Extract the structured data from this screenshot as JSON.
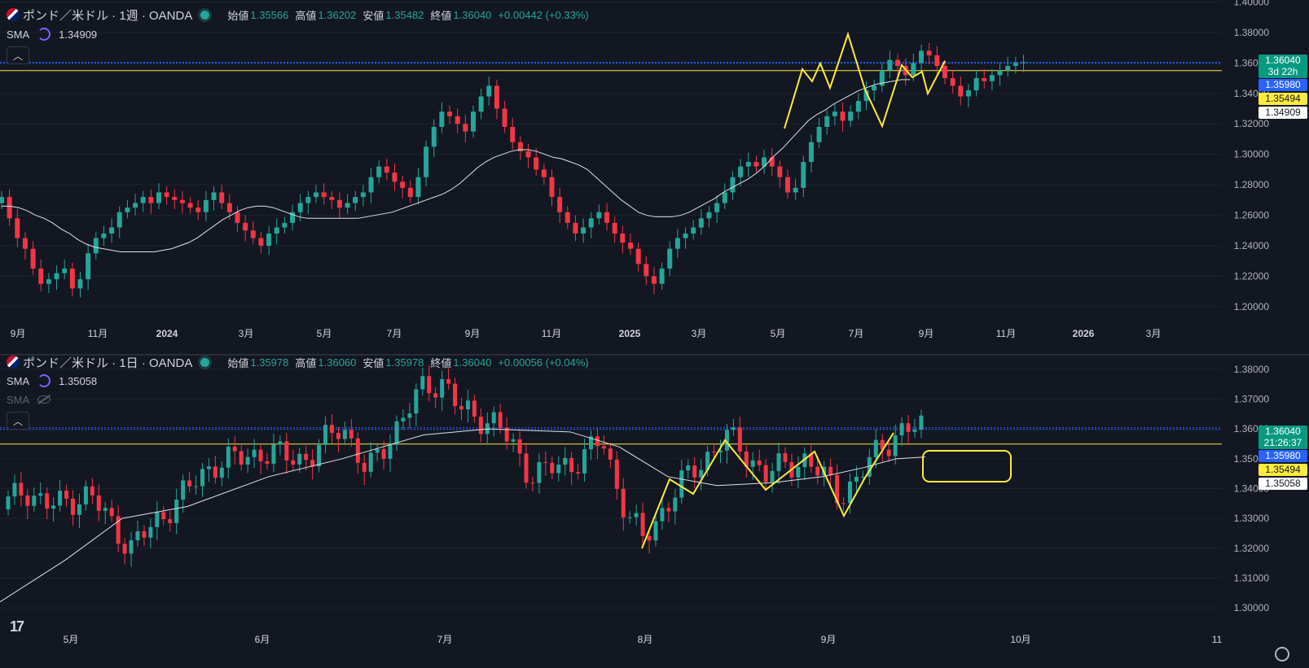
{
  "chart_data": [
    {
      "type": "candlestick",
      "symbol_title": "ポンド／米ドル · 1週 · OANDA",
      "ohlc_header": {
        "open_label": "始値",
        "open": "1.35566",
        "high_label": "高値",
        "high": "1.36202",
        "low_label": "安値",
        "low": "1.35482",
        "close_label": "終値",
        "close": "1.36040",
        "change": "+0.00442 (+0.33%)"
      },
      "indicator": {
        "name": "SMA",
        "value": "1.34909"
      },
      "y_ticks": [
        "1.40000",
        "1.38000",
        "1.36000",
        "1.34000",
        "1.32000",
        "1.30000",
        "1.28000",
        "1.26000",
        "1.24000",
        "1.22000",
        "1.20000"
      ],
      "ylim": [
        1.1898,
        1.4013
      ],
      "x_ticks": [
        {
          "label": "9月",
          "bold": false
        },
        {
          "label": "11月",
          "bold": false
        },
        {
          "label": "2024",
          "bold": true
        },
        {
          "label": "3月",
          "bold": false
        },
        {
          "label": "5月",
          "bold": false
        },
        {
          "label": "7月",
          "bold": false
        },
        {
          "label": "9月",
          "bold": false
        },
        {
          "label": "11月",
          "bold": false
        },
        {
          "label": "2025",
          "bold": true
        },
        {
          "label": "3月",
          "bold": false
        },
        {
          "label": "5月",
          "bold": false
        },
        {
          "label": "7月",
          "bold": false
        },
        {
          "label": "9月",
          "bold": false
        },
        {
          "label": "11月",
          "bold": false
        },
        {
          "label": "2026",
          "bold": true
        },
        {
          "label": "3月",
          "bold": false
        }
      ],
      "price_badges": [
        {
          "price": "1.36040",
          "sub": "3d 22h",
          "color": "#089981"
        },
        {
          "price": "1.35980",
          "color": "#2962ff"
        },
        {
          "price": "1.35494",
          "color": "#ffeb3b"
        },
        {
          "price": "1.34909",
          "color": "#ffffff"
        }
      ],
      "horizontal_lines": [
        {
          "value": 1.3604,
          "style": "dotted",
          "color": "#2962ff"
        },
        {
          "value": 1.3598,
          "style": "dotted",
          "color": "#2962ff"
        },
        {
          "value": 1.35494,
          "style": "solid",
          "color": "#ffeb3b"
        }
      ],
      "close_series": [
        1.272,
        1.258,
        1.245,
        1.238,
        1.225,
        1.215,
        1.218,
        1.222,
        1.225,
        1.212,
        1.218,
        1.235,
        1.245,
        1.248,
        1.252,
        1.262,
        1.265,
        1.268,
        1.272,
        1.268,
        1.275,
        1.272,
        1.27,
        1.268,
        1.265,
        1.262,
        1.27,
        1.275,
        1.268,
        1.262,
        1.255,
        1.25,
        1.245,
        1.24,
        1.248,
        1.252,
        1.255,
        1.262,
        1.268,
        1.272,
        1.275,
        1.272,
        1.27,
        1.265,
        1.268,
        1.272,
        1.275,
        1.285,
        1.292,
        1.288,
        1.282,
        1.278,
        1.272,
        1.285,
        1.305,
        1.318,
        1.328,
        1.325,
        1.32,
        1.315,
        1.328,
        1.338,
        1.345,
        1.33,
        1.318,
        1.308,
        1.302,
        1.298,
        1.29,
        1.285,
        1.272,
        1.262,
        1.255,
        1.248,
        1.252,
        1.258,
        1.262,
        1.255,
        1.248,
        1.242,
        1.238,
        1.228,
        1.22,
        1.215,
        1.225,
        1.238,
        1.245,
        1.248,
        1.252,
        1.258,
        1.262,
        1.268,
        1.275,
        1.285,
        1.292,
        1.295,
        1.292,
        1.298,
        1.292,
        1.285,
        1.275,
        1.278,
        1.295,
        1.308,
        1.318,
        1.325,
        1.328,
        1.322,
        1.328,
        1.335,
        1.342,
        1.345,
        1.355,
        1.362,
        1.358,
        1.352,
        1.36,
        1.368,
        1.365,
        1.358,
        1.35,
        1.345,
        1.338,
        1.342,
        1.35,
        1.348,
        1.352,
        1.355,
        1.358,
        1.36,
        1.3604
      ],
      "sma_series": [
        1.266,
        1.266,
        1.265,
        1.263,
        1.26,
        1.258,
        1.255,
        1.251,
        1.248,
        1.244,
        1.241,
        1.239,
        1.238,
        1.237,
        1.236,
        1.236,
        1.236,
        1.236,
        1.236,
        1.237,
        1.238,
        1.24,
        1.242,
        1.245,
        1.249,
        1.253,
        1.257,
        1.26,
        1.263,
        1.265,
        1.266,
        1.266,
        1.265,
        1.263,
        1.261,
        1.259,
        1.258,
        1.258,
        1.258,
        1.258,
        1.258,
        1.258,
        1.258,
        1.259,
        1.26,
        1.261,
        1.262,
        1.264,
        1.266,
        1.268,
        1.27,
        1.272,
        1.274,
        1.277,
        1.281,
        1.286,
        1.291,
        1.295,
        1.298,
        1.3,
        1.302,
        1.303,
        1.303,
        1.302,
        1.3,
        1.298,
        1.297,
        1.295,
        1.293,
        1.29,
        1.285,
        1.28,
        1.275,
        1.27,
        1.266,
        1.262,
        1.26,
        1.259,
        1.259,
        1.259,
        1.26,
        1.262,
        1.265,
        1.268,
        1.271,
        1.275,
        1.278,
        1.281,
        1.284,
        1.288,
        1.293,
        1.299,
        1.304,
        1.31,
        1.316,
        1.322,
        1.326,
        1.329,
        1.333,
        1.336,
        1.339,
        1.342,
        1.344,
        1.346,
        1.347,
        1.348,
        1.349,
        1.349
      ]
    },
    {
      "type": "candlestick",
      "symbol_title": "ポンド／米ドル · 1日 · OANDA",
      "ohlc_header": {
        "open_label": "始値",
        "open": "1.35978",
        "high_label": "高値",
        "high": "1.36060",
        "low_label": "安値",
        "low": "1.35978",
        "close_label": "終値",
        "close": "1.36040",
        "change": "+0.00056 (+0.04%)"
      },
      "indicators": [
        {
          "name": "SMA",
          "value": "1.35058",
          "visible": true
        },
        {
          "name": "SMA",
          "value": "",
          "visible": false
        }
      ],
      "y_ticks": [
        "1.38000",
        "1.37000",
        "1.36000",
        "1.35000",
        "1.34000",
        "1.33000",
        "1.32000",
        "1.31000",
        "1.30000"
      ],
      "ylim": [
        1.2932,
        1.3846
      ],
      "x_ticks": [
        {
          "label": "5月",
          "bold": false
        },
        {
          "label": "6月",
          "bold": false
        },
        {
          "label": "7月",
          "bold": false
        },
        {
          "label": "8月",
          "bold": false
        },
        {
          "label": "9月",
          "bold": false
        },
        {
          "label": "10月",
          "bold": false
        },
        {
          "label": "11",
          "bold": false
        }
      ],
      "price_badges": [
        {
          "price": "1.36040",
          "sub": "21:26:37",
          "color": "#089981"
        },
        {
          "price": "1.35980",
          "color": "#2962ff"
        },
        {
          "price": "1.35494",
          "color": "#ffeb3b"
        },
        {
          "price": "1.35058",
          "color": "#ffffff"
        }
      ],
      "horizontal_lines": [
        {
          "value": 1.3604,
          "style": "dotted",
          "color": "#2962ff"
        },
        {
          "value": 1.3598,
          "style": "dotted",
          "color": "#2962ff"
        },
        {
          "value": 1.35494,
          "style": "solid",
          "color": "#ffeb3b"
        }
      ]
    }
  ],
  "colors": {
    "up": "#26a69a",
    "down": "#f23645",
    "sma": "#e0e3eb",
    "annotation": "#ffeb3b",
    "background": "#131722",
    "grid": "#1e222d"
  },
  "icons": [
    "tradingview-logo-icon",
    "settings-gear-icon",
    "collapse-chevron-icon",
    "sma-refresh-icon",
    "eye-hidden-icon",
    "uk-us-flag-icon"
  ],
  "logo_text": "17"
}
